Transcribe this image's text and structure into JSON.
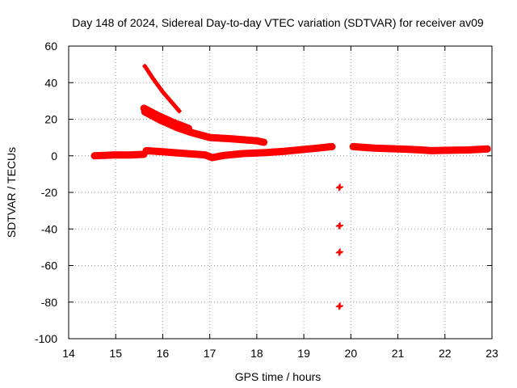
{
  "chart_data": {
    "type": "scatter",
    "title": "Day 148 of 2024, Sidereal Day-to-day VTEC variation (SDTVAR) for receiver av09",
    "xlabel": "GPS time / hours",
    "ylabel": "SDTVAR / TECUs",
    "xlim": [
      14,
      23
    ],
    "ylim": [
      -100,
      60
    ],
    "xticks": [
      14,
      15,
      16,
      17,
      18,
      19,
      20,
      21,
      22,
      23
    ],
    "yticks": [
      -100,
      -80,
      -60,
      -40,
      -20,
      0,
      20,
      40,
      60
    ],
    "grid": true,
    "marker_color": "#ff0000",
    "series": [
      {
        "name": "arc-1-main",
        "style": "thick",
        "points": [
          [
            14.55,
            0.0
          ],
          [
            14.8,
            0.3
          ],
          [
            15.0,
            0.5
          ],
          [
            15.3,
            0.4
          ],
          [
            15.6,
            0.8
          ]
        ]
      },
      {
        "name": "arc-2-main",
        "style": "thick",
        "points": [
          [
            15.65,
            2.8
          ],
          [
            16.0,
            2.2
          ],
          [
            16.5,
            1.2
          ],
          [
            16.9,
            0.5
          ],
          [
            17.05,
            -1.0
          ],
          [
            17.3,
            0.2
          ],
          [
            17.7,
            1.2
          ],
          [
            18.2,
            1.8
          ],
          [
            18.6,
            2.5
          ],
          [
            19.0,
            3.5
          ],
          [
            19.3,
            4.2
          ],
          [
            19.6,
            5.0
          ]
        ]
      },
      {
        "name": "arc-3-main",
        "style": "thick",
        "points": [
          [
            20.05,
            5.0
          ],
          [
            20.5,
            4.2
          ],
          [
            21.0,
            3.8
          ],
          [
            21.5,
            3.2
          ],
          [
            21.7,
            2.8
          ],
          [
            22.0,
            3.0
          ],
          [
            22.5,
            3.2
          ],
          [
            22.9,
            3.8
          ]
        ]
      },
      {
        "name": "arc-rising-1",
        "style": "thick",
        "points": [
          [
            15.6,
            26.0
          ],
          [
            15.9,
            22.0
          ],
          [
            16.2,
            18.5
          ],
          [
            16.55,
            15.0
          ]
        ]
      },
      {
        "name": "arc-rising-2",
        "style": "thick",
        "points": [
          [
            15.62,
            24.0
          ],
          [
            15.95,
            19.5
          ],
          [
            16.3,
            15.5
          ],
          [
            16.6,
            12.8
          ],
          [
            17.0,
            10.0
          ],
          [
            17.5,
            9.2
          ],
          [
            18.0,
            8.2
          ],
          [
            18.15,
            7.4
          ]
        ]
      },
      {
        "name": "arc-steep",
        "style": "thin",
        "points": [
          [
            15.62,
            49.0
          ],
          [
            15.8,
            42.0
          ],
          [
            16.0,
            35.0
          ],
          [
            16.2,
            29.0
          ],
          [
            16.35,
            24.5
          ]
        ]
      },
      {
        "name": "outliers",
        "style": "cross",
        "points": [
          [
            19.75,
            -17.5
          ],
          [
            19.77,
            -17.0
          ],
          [
            19.75,
            -38.5
          ],
          [
            19.77,
            -38.0
          ],
          [
            19.75,
            -53.0
          ],
          [
            19.77,
            -52.5
          ],
          [
            19.75,
            -82.5
          ],
          [
            19.77,
            -82.0
          ]
        ]
      }
    ]
  }
}
